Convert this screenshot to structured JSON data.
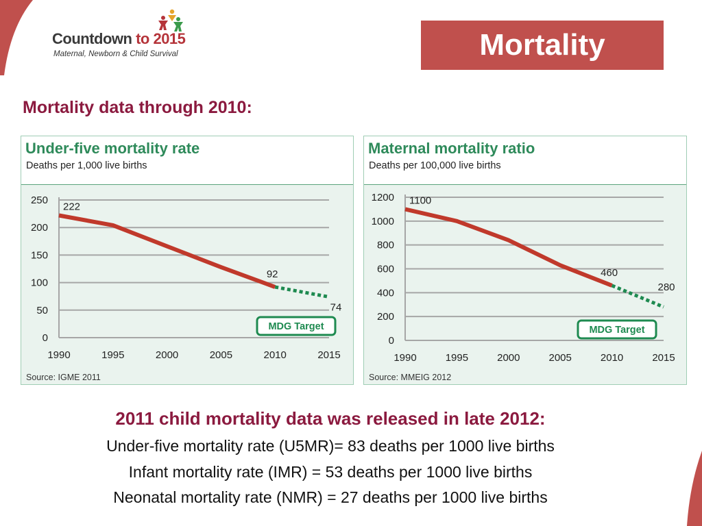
{
  "header": {
    "logo_main": "Countdown ",
    "logo_accent": "to 2015",
    "logo_sub": "Maternal, Newborn & Child Survival",
    "slide_title": "Mortality"
  },
  "subhead": "Mortality data through 2010:",
  "colors": {
    "brand_red": "#c0504d",
    "heading_maroon": "#8b1a3f",
    "chart_green": "#2e8a5a",
    "line_red": "#c0392b",
    "target_green": "#1e8a50"
  },
  "chart_data": [
    {
      "type": "line",
      "title": "Under-five mortality rate",
      "subtitle": "Deaths per 1,000 live births",
      "source": "Source: IGME 2011",
      "x_ticks": [
        "1990",
        "1995",
        "2000",
        "2005",
        "2010",
        "2015"
      ],
      "y_ticks": [
        "0",
        "50",
        "100",
        "150",
        "200",
        "250"
      ],
      "ylim": [
        0,
        250
      ],
      "xlim": [
        1990,
        2015
      ],
      "grid": true,
      "series": [
        {
          "style": "solid",
          "x": [
            1990,
            1995,
            2000,
            2005,
            2010
          ],
          "y": [
            222,
            204,
            166,
            128,
            92
          ]
        },
        {
          "style": "dotted",
          "x": [
            2010,
            2015
          ],
          "y": [
            92,
            74
          ]
        }
      ],
      "data_labels": [
        {
          "x": 1990,
          "y": 222,
          "text": "222"
        },
        {
          "x": 2010,
          "y": 92,
          "text": "92"
        },
        {
          "x": 2015,
          "y": 74,
          "text": "74"
        }
      ],
      "annotation": "MDG Target"
    },
    {
      "type": "line",
      "title": "Maternal mortality ratio",
      "subtitle": "Deaths per 100,000 live births",
      "source": "Source: MMEIG 2012",
      "x_ticks": [
        "1990",
        "1995",
        "2000",
        "2005",
        "2010",
        "2015"
      ],
      "y_ticks": [
        "0",
        "200",
        "400",
        "600",
        "800",
        "1000",
        "1200"
      ],
      "ylim": [
        0,
        1200
      ],
      "xlim": [
        1990,
        2015
      ],
      "grid": true,
      "series": [
        {
          "style": "solid",
          "x": [
            1990,
            1995,
            2000,
            2005,
            2010
          ],
          "y": [
            1100,
            1000,
            840,
            630,
            460
          ]
        },
        {
          "style": "dotted",
          "x": [
            2010,
            2015
          ],
          "y": [
            460,
            280
          ]
        }
      ],
      "data_labels": [
        {
          "x": 1990,
          "y": 1100,
          "text": "1100"
        },
        {
          "x": 2010,
          "y": 460,
          "text": "460"
        },
        {
          "x": 2015,
          "y": 280,
          "text": "280"
        }
      ],
      "annotation": "MDG Target"
    }
  ],
  "footer": {
    "heading": "2011 child mortality data was released in late 2012:",
    "lines": [
      "Under-five mortality rate (U5MR)= 83 deaths per 1000 live births",
      "Infant mortality rate (IMR) = 53 deaths per 1000 live births",
      "Neonatal mortality rate (NMR) = 27 deaths per 1000 live births"
    ]
  }
}
